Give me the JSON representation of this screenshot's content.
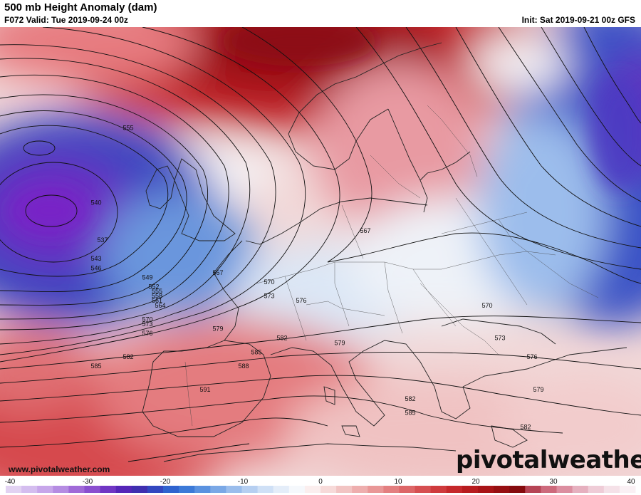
{
  "header": {
    "title": "500 mb Height Anomaly (dam)",
    "valid": "F072 Valid: Tue 2019-09-24 00z",
    "init": "Init: Sat 2019-09-21 00z GFS"
  },
  "footer": {
    "website": "www.pivotalweather.com",
    "brand": "pivotalweather"
  },
  "colorbar": {
    "ticks": [
      "-40",
      "-30",
      "-20",
      "-10",
      "0",
      "10",
      "20",
      "30",
      "40"
    ],
    "colors": [
      "#e2d2f2",
      "#d4bdef",
      "#c7a6ea",
      "#b58ce2",
      "#a06ad8",
      "#8a4fcf",
      "#7036c4",
      "#5526b8",
      "#3f2fb0",
      "#3347c0",
      "#2f63cf",
      "#3c7ad8",
      "#5a92e0",
      "#7aa8e6",
      "#9abdec",
      "#b6cff1",
      "#cfe0f6",
      "#e4edf9",
      "#f5f8fc",
      "#fbeeee",
      "#f7dad9",
      "#f2c4c3",
      "#eeaeae",
      "#e99797",
      "#e37f80",
      "#dd6667",
      "#d64f51",
      "#cf3a3d",
      "#c5282b",
      "#b71c1f",
      "#a81417",
      "#970f12",
      "#850b0e",
      "#b64455",
      "#cd6a7c",
      "#dc8ea0",
      "#e6b0bf",
      "#efccd7",
      "#f5e1e8",
      "#faf0f4"
    ]
  },
  "map": {
    "contour_labels": [
      {
        "text": "555",
        "lon": -20,
        "lat": 64
      },
      {
        "text": "540",
        "lon": -25,
        "lat": 56
      },
      {
        "text": "537",
        "lon": -24,
        "lat": 52
      },
      {
        "text": "543",
        "lon": -25,
        "lat": 50
      },
      {
        "text": "546",
        "lon": -25,
        "lat": 49
      },
      {
        "text": "549",
        "lon": -17,
        "lat": 48
      },
      {
        "text": "552",
        "lon": -16,
        "lat": 47
      },
      {
        "text": "555",
        "lon": -15.5,
        "lat": 46.5
      },
      {
        "text": "558",
        "lon": -15.5,
        "lat": 46
      },
      {
        "text": "561",
        "lon": -15.5,
        "lat": 45.5
      },
      {
        "text": "564",
        "lon": -15,
        "lat": 45
      },
      {
        "text": "567",
        "lon": -6,
        "lat": 48.5
      },
      {
        "text": "567",
        "lon": 17,
        "lat": 53
      },
      {
        "text": "570",
        "lon": -17,
        "lat": 43.5
      },
      {
        "text": "570",
        "lon": 2,
        "lat": 47.5
      },
      {
        "text": "570",
        "lon": 36,
        "lat": 45
      },
      {
        "text": "573",
        "lon": -17,
        "lat": 43
      },
      {
        "text": "573",
        "lon": 2,
        "lat": 46
      },
      {
        "text": "573",
        "lon": 38,
        "lat": 41.5
      },
      {
        "text": "576",
        "lon": -17,
        "lat": 42
      },
      {
        "text": "576",
        "lon": 7,
        "lat": 45.5
      },
      {
        "text": "576",
        "lon": 43,
        "lat": 39.5
      },
      {
        "text": "579",
        "lon": -6,
        "lat": 42.5
      },
      {
        "text": "579",
        "lon": 13,
        "lat": 41
      },
      {
        "text": "579",
        "lon": 44,
        "lat": 36
      },
      {
        "text": "582",
        "lon": -20,
        "lat": 39.5
      },
      {
        "text": "582",
        "lon": 4,
        "lat": 41.5
      },
      {
        "text": "582",
        "lon": 24,
        "lat": 35
      },
      {
        "text": "582",
        "lon": 42,
        "lat": 32
      },
      {
        "text": "585",
        "lon": -25,
        "lat": 38.5
      },
      {
        "text": "585",
        "lon": 0,
        "lat": 40
      },
      {
        "text": "585",
        "lon": 24,
        "lat": 33.5
      },
      {
        "text": "588",
        "lon": -2,
        "lat": 38.5
      },
      {
        "text": "591",
        "lon": -8,
        "lat": 36
      }
    ]
  }
}
